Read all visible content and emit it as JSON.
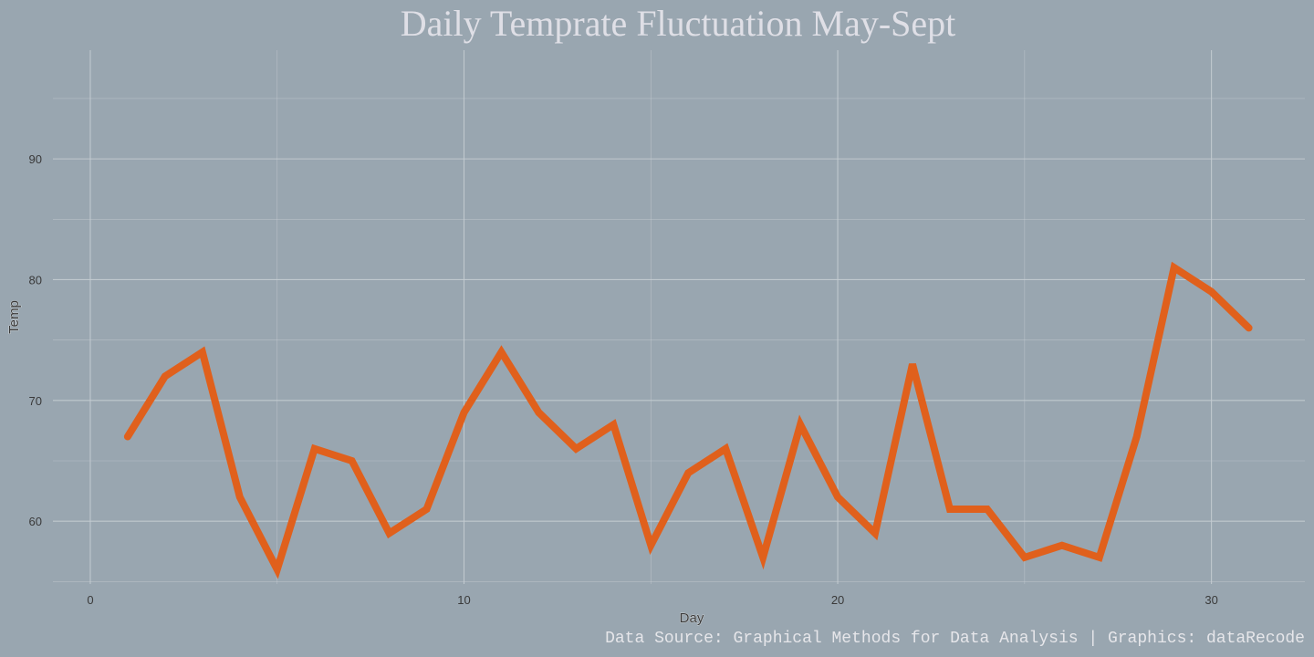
{
  "chart_data": {
    "type": "line",
    "title": "Daily Temprate Fluctuation May-Sept",
    "xlabel": "Day",
    "ylabel": "Temp",
    "caption": "Data Source: Graphical Methods for Data Analysis | Graphics: dataRecode",
    "x": [
      1,
      2,
      3,
      4,
      5,
      6,
      7,
      8,
      9,
      10,
      11,
      12,
      13,
      14,
      15,
      16,
      17,
      18,
      19,
      20,
      21,
      22,
      23,
      24,
      25,
      26,
      27,
      28,
      29,
      30,
      31
    ],
    "series": [
      {
        "values": [
          67,
          72,
          74,
          62,
          56,
          66,
          65,
          59,
          61,
          69,
          74,
          69,
          66,
          68,
          58,
          64,
          66,
          57,
          68,
          62,
          59,
          73,
          61,
          61,
          57,
          58,
          57,
          67,
          81,
          79,
          76
        ]
      }
    ],
    "xlim": [
      -1,
      32.5
    ],
    "ylim": [
      54.8,
      99
    ],
    "x_ticks": [
      0,
      10,
      20,
      30
    ],
    "x_tick_labels": [
      "0",
      "10",
      "20",
      "30"
    ],
    "y_ticks": [
      60,
      70,
      80,
      90
    ],
    "y_tick_labels": [
      "60",
      "70",
      "80",
      "90"
    ],
    "grid": true,
    "line_color": "#e0601c",
    "background_color": "#99a6b0",
    "grid_color": "#c4ccd2"
  }
}
